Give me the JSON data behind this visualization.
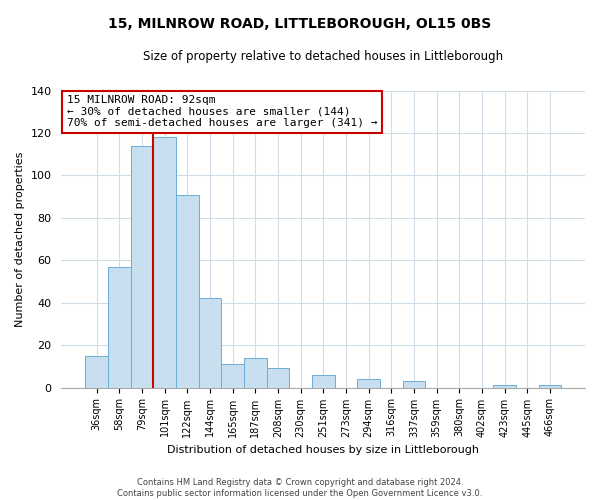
{
  "title": "15, MILNROW ROAD, LITTLEBOROUGH, OL15 0BS",
  "subtitle": "Size of property relative to detached houses in Littleborough",
  "xlabel": "Distribution of detached houses by size in Littleborough",
  "ylabel": "Number of detached properties",
  "categories": [
    "36sqm",
    "58sqm",
    "79sqm",
    "101sqm",
    "122sqm",
    "144sqm",
    "165sqm",
    "187sqm",
    "208sqm",
    "230sqm",
    "251sqm",
    "273sqm",
    "294sqm",
    "316sqm",
    "337sqm",
    "359sqm",
    "380sqm",
    "402sqm",
    "423sqm",
    "445sqm",
    "466sqm"
  ],
  "values": [
    15,
    57,
    114,
    118,
    91,
    42,
    11,
    14,
    9,
    0,
    6,
    0,
    4,
    0,
    3,
    0,
    0,
    0,
    1,
    0,
    1
  ],
  "bar_color": "#c8dff0",
  "bar_edge_color": "#6baed6",
  "vline_color": "#cc0000",
  "vline_x_index": 3,
  "annotation_title": "15 MILNROW ROAD: 92sqm",
  "annotation_line1": "← 30% of detached houses are smaller (144)",
  "annotation_line2": "70% of semi-detached houses are larger (341) →",
  "annotation_box_color": "#ffffff",
  "annotation_box_edge": "#cc0000",
  "ylim": [
    0,
    140
  ],
  "yticks": [
    0,
    20,
    40,
    60,
    80,
    100,
    120,
    140
  ],
  "footer_line1": "Contains HM Land Registry data © Crown copyright and database right 2024.",
  "footer_line2": "Contains public sector information licensed under the Open Government Licence v3.0.",
  "background_color": "#ffffff",
  "grid_color": "#d0dce8"
}
